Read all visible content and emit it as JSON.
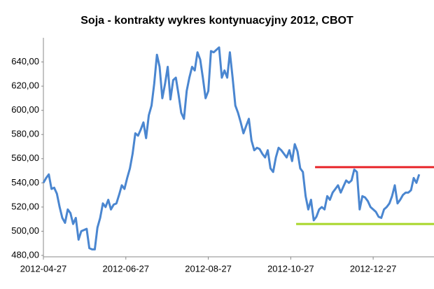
{
  "chart_data": {
    "type": "line",
    "title": "Soja - kontrakty wykres kontynuacyjny 2012, CBOT",
    "x": [
      "2012-04-27",
      "2012-04-29",
      "2012-05-01",
      "2012-05-03",
      "2012-05-05",
      "2012-05-07",
      "2012-05-09",
      "2012-05-11",
      "2012-05-13",
      "2012-05-15",
      "2012-05-17",
      "2012-05-19",
      "2012-05-21",
      "2012-05-23",
      "2012-05-25",
      "2012-05-27",
      "2012-05-29",
      "2012-05-31",
      "2012-06-02",
      "2012-06-04",
      "2012-06-06",
      "2012-06-08",
      "2012-06-10",
      "2012-06-12",
      "2012-06-14",
      "2012-06-16",
      "2012-06-18",
      "2012-06-20",
      "2012-06-22",
      "2012-06-24",
      "2012-06-26",
      "2012-06-28",
      "2012-06-30",
      "2012-07-02",
      "2012-07-04",
      "2012-07-06",
      "2012-07-08",
      "2012-07-10",
      "2012-07-12",
      "2012-07-14",
      "2012-07-16",
      "2012-07-18",
      "2012-07-20",
      "2012-07-22",
      "2012-07-24",
      "2012-07-26",
      "2012-07-28",
      "2012-07-30",
      "2012-08-01",
      "2012-08-03",
      "2012-08-05",
      "2012-08-07",
      "2012-08-09",
      "2012-08-11",
      "2012-08-13",
      "2012-08-15",
      "2012-08-17",
      "2012-08-19",
      "2012-08-21",
      "2012-08-23",
      "2012-08-25",
      "2012-08-27",
      "2012-08-29",
      "2012-08-31",
      "2012-09-02",
      "2012-09-04",
      "2012-09-06",
      "2012-09-08",
      "2012-09-10",
      "2012-09-12",
      "2012-09-14",
      "2012-09-16",
      "2012-09-18",
      "2012-09-20",
      "2012-09-22",
      "2012-09-24",
      "2012-09-26",
      "2012-09-28",
      "2012-09-30",
      "2012-10-02",
      "2012-10-04",
      "2012-10-06",
      "2012-10-08",
      "2012-10-10",
      "2012-10-12",
      "2012-10-14",
      "2012-10-16",
      "2012-10-18",
      "2012-10-20",
      "2012-10-22",
      "2012-10-24",
      "2012-10-26",
      "2012-10-28",
      "2012-10-30",
      "2012-11-01",
      "2012-11-03",
      "2012-11-05",
      "2012-11-07",
      "2012-11-09",
      "2012-11-11",
      "2012-11-13",
      "2012-11-15",
      "2012-11-17",
      "2012-11-19",
      "2012-11-21",
      "2012-11-23",
      "2012-11-25",
      "2012-11-27",
      "2012-11-29",
      "2012-12-01",
      "2012-12-03",
      "2012-12-05",
      "2012-12-07",
      "2012-12-09",
      "2012-12-11",
      "2012-12-13",
      "2012-12-15",
      "2012-12-17",
      "2012-12-19",
      "2012-12-21",
      "2012-12-23",
      "2012-12-25",
      "2012-12-27",
      "2012-12-29",
      "2012-12-31",
      "2013-01-02",
      "2013-01-04",
      "2013-01-06",
      "2013-01-08",
      "2013-01-10",
      "2013-01-12",
      "2013-01-14",
      "2013-01-16",
      "2013-01-18",
      "2013-01-20",
      "2013-01-22",
      "2013-01-24",
      "2013-01-26",
      "2013-01-28",
      "2013-01-30"
    ],
    "series": [
      {
        "color": "#4a86d0",
        "values": [
          540,
          544,
          547,
          535,
          536,
          531,
          520,
          511,
          507,
          518,
          515,
          506,
          511,
          493,
          500,
          501,
          502,
          486,
          485,
          485,
          503,
          511,
          523,
          520,
          526,
          518,
          522,
          523,
          530,
          538,
          535,
          544,
          552,
          564,
          581,
          579,
          584,
          590,
          577,
          596,
          604,
          622,
          646,
          636,
          610,
          622,
          636,
          609,
          625,
          627,
          613,
          598,
          593,
          616,
          627,
          636,
          633,
          648,
          642,
          627,
          610,
          616,
          649,
          648,
          650,
          652,
          627,
          633,
          627,
          648,
          627,
          604,
          598,
          590,
          581,
          587,
          593,
          575,
          567,
          569,
          568,
          564,
          561,
          567,
          552,
          549,
          561,
          569,
          567,
          564,
          561,
          567,
          558,
          572,
          566,
          552,
          549,
          529,
          518,
          526,
          509,
          512,
          518,
          520,
          518,
          529,
          526,
          532,
          535,
          538,
          532,
          537,
          542,
          540,
          542,
          551,
          549,
          518,
          529,
          528,
          525,
          520,
          518,
          516,
          512,
          511,
          518,
          520,
          523,
          529,
          538,
          523,
          526,
          530,
          532,
          532,
          534,
          544,
          540,
          547
        ]
      }
    ],
    "xlim": [
      "2012-04-27",
      "2013-02-10"
    ],
    "xticks": [
      "2012-04-27",
      "2012-06-27",
      "2012-08-27",
      "2012-10-27",
      "2012-12-27"
    ],
    "ylim": [
      480,
      660
    ],
    "yticks": [
      {
        "value": 480,
        "label": "480,00"
      },
      {
        "value": 500,
        "label": "500,00"
      },
      {
        "value": 520,
        "label": "520,00"
      },
      {
        "value": 540,
        "label": "540,00"
      },
      {
        "value": 560,
        "label": "560,00"
      },
      {
        "value": 580,
        "label": "580,00"
      },
      {
        "value": 600,
        "label": "600,00"
      },
      {
        "value": 620,
        "label": "620,00"
      },
      {
        "value": 640,
        "label": "640,00"
      }
    ],
    "reference_lines": [
      {
        "value": 553,
        "color": "#e8262b",
        "start": "2012-11-14"
      },
      {
        "value": 506,
        "color": "#a8d62a",
        "start": "2012-10-31"
      }
    ]
  }
}
